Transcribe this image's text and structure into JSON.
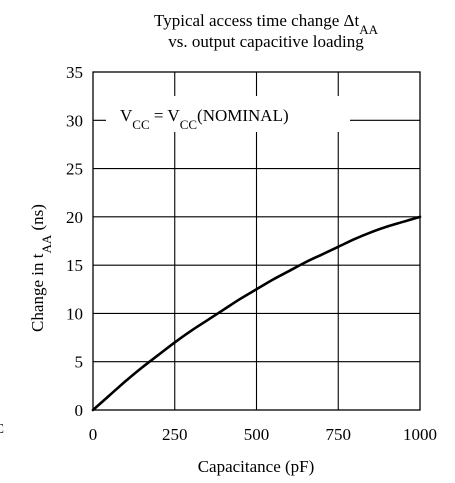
{
  "chart_data": {
    "type": "line",
    "title": {
      "line1_main": "Typical access time change Δt",
      "line1_sub": "AA",
      "line2": "vs. output capacitive loading"
    },
    "xlabel": "Capacitance (pF)",
    "ylabel": {
      "main": "Change in t",
      "sub": "AA",
      "tail": " (ns)"
    },
    "xlim": [
      0,
      1000
    ],
    "ylim": [
      0,
      35
    ],
    "xticks": [
      0,
      250,
      500,
      750,
      1000
    ],
    "yticks": [
      0,
      5,
      10,
      15,
      20,
      25,
      30,
      35
    ],
    "grid": true,
    "annotation": {
      "parts": [
        {
          "text": "V",
          "sub": false
        },
        {
          "text": "CC",
          "sub": true
        },
        {
          "text": " = V",
          "sub": false
        },
        {
          "text": "CC",
          "sub": true
        },
        {
          "text": "(NOMINAL)",
          "sub": false
        }
      ]
    },
    "edge_fragment": "C",
    "series": [
      {
        "x": [
          0,
          50,
          100,
          150,
          200,
          250,
          300,
          350,
          400,
          450,
          500,
          550,
          600,
          650,
          700,
          750,
          800,
          850,
          900,
          950,
          1000
        ],
        "y": [
          0,
          1.5,
          3.0,
          4.4,
          5.7,
          7.0,
          8.2,
          9.3,
          10.4,
          11.5,
          12.5,
          13.5,
          14.4,
          15.3,
          16.1,
          16.9,
          17.7,
          18.4,
          19.0,
          19.5,
          20.0
        ]
      }
    ]
  }
}
